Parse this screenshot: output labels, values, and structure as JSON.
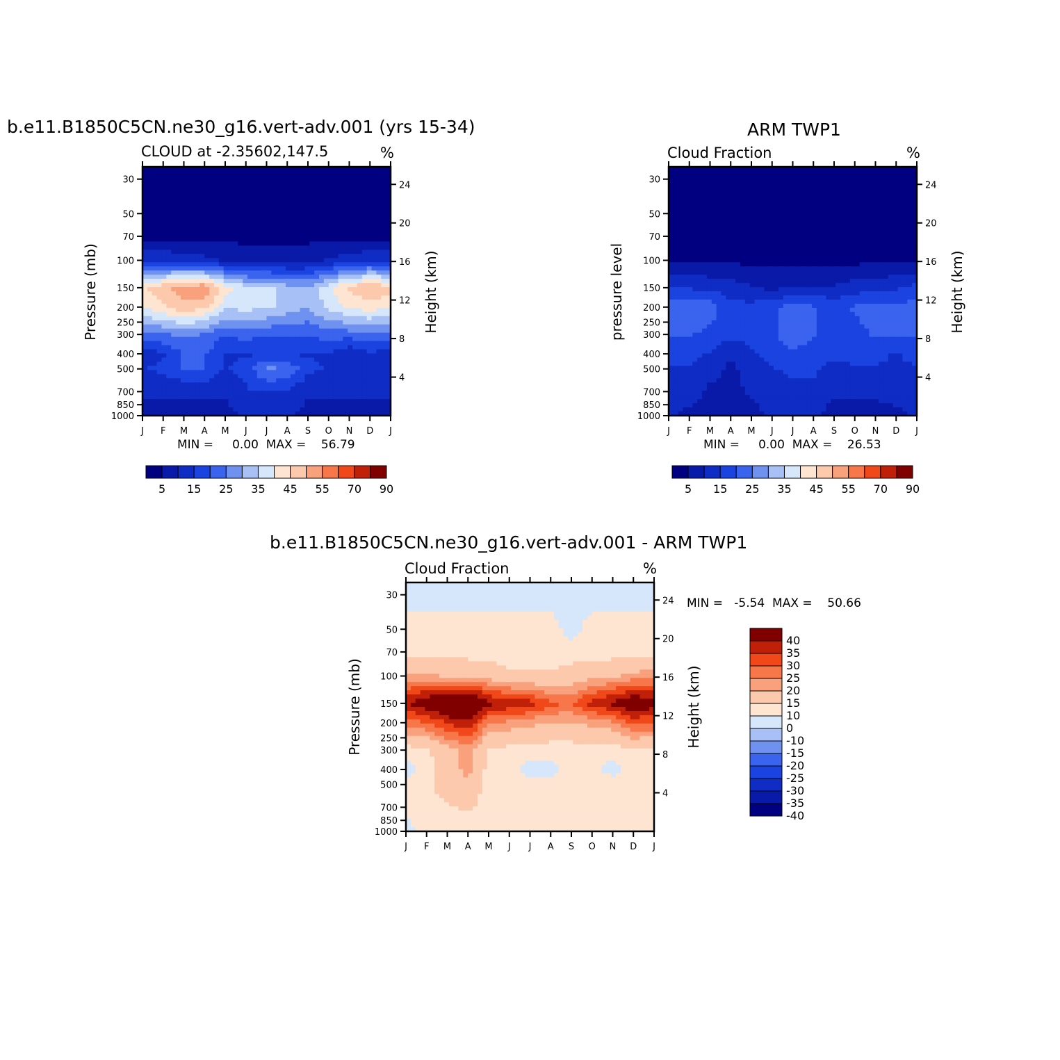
{
  "colors": {
    "absolute_scale": [
      "#000080",
      "#0a1aa8",
      "#0f2cc4",
      "#1a43e0",
      "#3a63ee",
      "#6f92f0",
      "#a7c0f5",
      "#d6e6fb",
      "#fde5d2",
      "#fcc9ad",
      "#f9a17c",
      "#f7774b",
      "#f04818",
      "#c02008",
      "#800000"
    ],
    "difference_scale": [
      "#000080",
      "#0a1aa8",
      "#0f2cc4",
      "#1a43e0",
      "#3a63ee",
      "#6f92f0",
      "#a7c0f5",
      "#d6e6fb",
      "#fde5d2",
      "#fcc9ad",
      "#f9a17c",
      "#f7774b",
      "#f04818",
      "#c02008",
      "#800000"
    ]
  },
  "header": {
    "run_title": "b.e11.B1850C5CN.ne30_g16.vert-adv.001 (yrs 15-34)",
    "obs_title": "ARM TWP1",
    "diff_title": "b.e11.B1850C5CN.ne30_g16.vert-adv.001 - ARM TWP1"
  },
  "panels": {
    "model": {
      "subtitle": "CLOUD at -2.35602,147.5",
      "unit": "%",
      "ylabel": "Pressure (mb)",
      "y2label": "Height (km)",
      "stats_label": "MIN =     0.00  MAX =    56.79"
    },
    "obs": {
      "subtitle": "Cloud Fraction",
      "unit": "%",
      "ylabel": "pressure level",
      "y2label": "Height (km)",
      "stats_label": "MIN =     0.00  MAX =    26.53"
    },
    "diff": {
      "subtitle": "Cloud Fraction",
      "unit": "%",
      "ylabel": "Pressure (mb)",
      "y2label": "Height (km)",
      "stats_label": "MIN =   -5.54  MAX =    50.66"
    }
  },
  "chart_data": [
    {
      "type": "heatmap",
      "title": "b.e11.B1850C5CN.ne30_g16.vert-adv.001 (yrs 15-34)",
      "subtitle": "CLOUD at -2.35602,147.5",
      "xlabel": "",
      "ylabel": "Pressure (mb)",
      "y2label": "Height (km)",
      "x_ticks": [
        "J",
        "F",
        "M",
        "A",
        "M",
        "J",
        "J",
        "A",
        "S",
        "O",
        "N",
        "D",
        "J"
      ],
      "y_ticks": [
        30,
        50,
        70,
        100,
        150,
        200,
        250,
        300,
        400,
        500,
        700,
        850,
        1000
      ],
      "y2_ticks": [
        24,
        20,
        16,
        12,
        8,
        4
      ],
      "y_scale": "log",
      "ylim": [
        1000,
        25
      ],
      "colorbar_labels": [
        "5",
        "15",
        "25",
        "35",
        "45",
        "55",
        "70",
        "90"
      ],
      "min": 0.0,
      "max": 56.79,
      "approx_field": {
        "pressure_levels": [
          30,
          50,
          70,
          100,
          150,
          200,
          300,
          400,
          500,
          700,
          1000
        ],
        "months": [
          "J",
          "F",
          "M",
          "A",
          "M",
          "J",
          "J",
          "A",
          "S",
          "O",
          "N",
          "D",
          "J"
        ],
        "values": [
          [
            0,
            0,
            0,
            0,
            0,
            0,
            0,
            0,
            0,
            0,
            0,
            0,
            0
          ],
          [
            0,
            0,
            0,
            0,
            0,
            0,
            0,
            0,
            0,
            0,
            0,
            0,
            0
          ],
          [
            1,
            1,
            1,
            1,
            1,
            1,
            1,
            1,
            1,
            1,
            1,
            1,
            1
          ],
          [
            12,
            12,
            10,
            9,
            7,
            5,
            5,
            5,
            6,
            8,
            10,
            12,
            12
          ],
          [
            42,
            46,
            50,
            52,
            40,
            34,
            34,
            30,
            28,
            36,
            44,
            48,
            44
          ],
          [
            38,
            42,
            46,
            44,
            34,
            34,
            34,
            30,
            28,
            34,
            38,
            40,
            38
          ],
          [
            20,
            22,
            24,
            22,
            18,
            20,
            18,
            18,
            18,
            20,
            20,
            22,
            20
          ],
          [
            10,
            12,
            18,
            18,
            12,
            12,
            12,
            12,
            12,
            12,
            8,
            12,
            10
          ],
          [
            12,
            14,
            18,
            18,
            12,
            14,
            24,
            22,
            14,
            12,
            12,
            12,
            12
          ],
          [
            8,
            8,
            8,
            8,
            8,
            12,
            12,
            12,
            8,
            8,
            8,
            8,
            8
          ],
          [
            6,
            6,
            6,
            6,
            6,
            8,
            8,
            8,
            6,
            6,
            6,
            6,
            6
          ]
        ]
      }
    },
    {
      "type": "heatmap",
      "title": "ARM TWP1",
      "subtitle": "Cloud Fraction",
      "ylabel": "pressure level",
      "y2label": "Height (km)",
      "x_ticks": [
        "J",
        "F",
        "M",
        "A",
        "M",
        "J",
        "J",
        "A",
        "S",
        "O",
        "N",
        "D",
        "J"
      ],
      "y_ticks": [
        30,
        50,
        70,
        100,
        150,
        200,
        250,
        300,
        400,
        500,
        700,
        850,
        1000
      ],
      "y2_ticks": [
        24,
        20,
        16,
        12,
        8,
        4
      ],
      "y_scale": "log",
      "ylim": [
        1000,
        25
      ],
      "colorbar_labels": [
        "5",
        "15",
        "25",
        "35",
        "45",
        "55",
        "70",
        "90"
      ],
      "min": 0.0,
      "max": 26.53,
      "approx_field": {
        "pressure_levels": [
          30,
          50,
          70,
          100,
          150,
          200,
          300,
          400,
          500,
          700,
          1000
        ],
        "months": [
          "J",
          "F",
          "M",
          "A",
          "M",
          "J",
          "J",
          "A",
          "S",
          "O",
          "N",
          "D",
          "J"
        ],
        "values": [
          [
            0,
            0,
            0,
            0,
            0,
            0,
            0,
            0,
            0,
            0,
            0,
            0,
            0
          ],
          [
            0,
            0,
            0,
            0,
            0,
            0,
            0,
            0,
            0,
            0,
            0,
            0,
            0
          ],
          [
            0,
            0,
            0,
            0,
            0,
            0,
            0,
            0,
            0,
            0,
            0,
            0,
            0
          ],
          [
            2,
            2,
            2,
            2,
            1,
            1,
            1,
            1,
            1,
            1,
            2,
            2,
            2
          ],
          [
            12,
            12,
            11,
            10,
            8,
            6,
            8,
            8,
            8,
            10,
            10,
            12,
            14
          ],
          [
            20,
            22,
            20,
            14,
            14,
            16,
            20,
            18,
            16,
            18,
            20,
            18,
            20
          ],
          [
            18,
            18,
            16,
            14,
            14,
            16,
            22,
            18,
            16,
            16,
            18,
            18,
            18
          ],
          [
            14,
            14,
            12,
            8,
            12,
            14,
            16,
            14,
            14,
            14,
            14,
            12,
            14
          ],
          [
            12,
            12,
            10,
            6,
            10,
            12,
            14,
            14,
            10,
            12,
            12,
            12,
            12
          ],
          [
            10,
            10,
            6,
            6,
            8,
            10,
            10,
            10,
            8,
            8,
            8,
            10,
            10
          ],
          [
            8,
            6,
            6,
            6,
            6,
            8,
            8,
            8,
            6,
            6,
            6,
            6,
            8
          ]
        ]
      }
    },
    {
      "type": "heatmap",
      "title": "b.e11.B1850C5CN.ne30_g16.vert-adv.001 - ARM TWP1",
      "subtitle": "Cloud Fraction",
      "ylabel": "Pressure (mb)",
      "y2label": "Height (km)",
      "x_ticks": [
        "J",
        "F",
        "M",
        "A",
        "M",
        "J",
        "J",
        "A",
        "S",
        "O",
        "N",
        "D",
        "J"
      ],
      "y_ticks": [
        30,
        50,
        70,
        100,
        150,
        200,
        250,
        300,
        400,
        500,
        700,
        850,
        1000
      ],
      "y2_ticks": [
        24,
        20,
        16,
        12,
        8,
        4
      ],
      "y_scale": "log",
      "ylim": [
        1000,
        25
      ],
      "colorbar_labels": [
        "40",
        "35",
        "30",
        "25",
        "20",
        "15",
        "10",
        "0",
        "-10",
        "-15",
        "-20",
        "-25",
        "-30",
        "-35",
        "-40"
      ],
      "min": -5.54,
      "max": 50.66,
      "approx_field": {
        "pressure_levels": [
          30,
          50,
          70,
          100,
          150,
          200,
          300,
          400,
          500,
          700,
          1000
        ],
        "months": [
          "J",
          "F",
          "M",
          "A",
          "M",
          "J",
          "J",
          "A",
          "S",
          "O",
          "N",
          "D",
          "J"
        ],
        "values": [
          [
            -2,
            -2,
            -2,
            -2,
            -2,
            -2,
            -2,
            -2,
            -2,
            -2,
            -2,
            -2,
            -2
          ],
          [
            2,
            2,
            2,
            2,
            2,
            2,
            2,
            2,
            -2,
            2,
            2,
            2,
            2
          ],
          [
            2,
            2,
            2,
            2,
            2,
            2,
            2,
            2,
            2,
            2,
            2,
            2,
            2
          ],
          [
            14,
            14,
            12,
            12,
            10,
            6,
            6,
            6,
            8,
            10,
            12,
            14,
            16
          ],
          [
            32,
            38,
            42,
            45,
            34,
            32,
            30,
            24,
            22,
            30,
            34,
            40,
            36
          ],
          [
            20,
            22,
            28,
            32,
            18,
            16,
            14,
            12,
            12,
            14,
            16,
            24,
            22
          ],
          [
            2,
            4,
            10,
            14,
            4,
            3,
            2,
            2,
            2,
            2,
            2,
            4,
            4
          ],
          [
            -2,
            2,
            10,
            14,
            3,
            2,
            -2,
            -2,
            2,
            2,
            -2,
            2,
            2
          ],
          [
            2,
            2,
            10,
            12,
            2,
            2,
            2,
            2,
            2,
            2,
            2,
            2,
            2
          ],
          [
            2,
            2,
            4,
            6,
            2,
            2,
            2,
            2,
            2,
            2,
            2,
            2,
            2
          ],
          [
            -2,
            2,
            2,
            2,
            2,
            2,
            2,
            2,
            2,
            2,
            2,
            2,
            2
          ]
        ]
      }
    }
  ]
}
